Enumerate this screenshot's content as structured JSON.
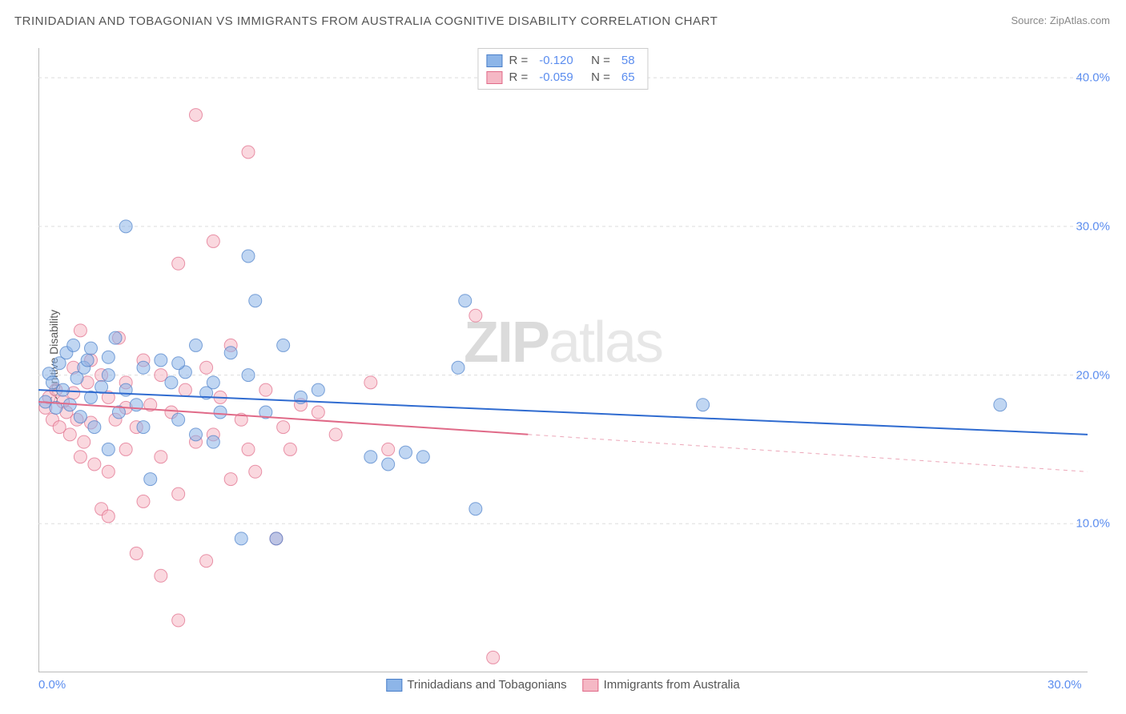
{
  "title": "TRINIDADIAN AND TOBAGONIAN VS IMMIGRANTS FROM AUSTRALIA COGNITIVE DISABILITY CORRELATION CHART",
  "source": "Source: ZipAtlas.com",
  "ylabel": "Cognitive Disability",
  "watermark_a": "ZIP",
  "watermark_b": "atlas",
  "chart": {
    "type": "scatter",
    "background_color": "#ffffff",
    "grid_color": "#dddddd",
    "axis_color": "#bbbbbb",
    "tick_color": "#5b8def",
    "tick_fontsize": 15,
    "label_fontsize": 14,
    "label_color": "#555555",
    "xlim": [
      0,
      30
    ],
    "ylim": [
      0,
      42
    ],
    "xticks": [
      {
        "v": 0,
        "label": "0.0%"
      },
      {
        "v": 30,
        "label": "30.0%"
      }
    ],
    "yticks": [
      {
        "v": 10,
        "label": "10.0%"
      },
      {
        "v": 20,
        "label": "20.0%"
      },
      {
        "v": 30,
        "label": "30.0%"
      },
      {
        "v": 40,
        "label": "40.0%"
      }
    ],
    "marker_radius": 8,
    "marker_opacity": 0.55,
    "series": [
      {
        "name": "Trinidadians and Tobagonians",
        "color": "#8db5e8",
        "stroke": "#4a7fc9",
        "R": "-0.120",
        "N": "58",
        "trend": {
          "x1": 0,
          "y1": 19.0,
          "x2": 30,
          "y2": 16.0,
          "solid_until": 30,
          "stroke": "#2f6bd0",
          "width": 2
        },
        "points": [
          [
            0.2,
            18.2
          ],
          [
            0.3,
            20.1
          ],
          [
            0.4,
            19.5
          ],
          [
            0.5,
            17.8
          ],
          [
            0.6,
            20.8
          ],
          [
            0.7,
            19.0
          ],
          [
            0.8,
            21.5
          ],
          [
            0.9,
            18.0
          ],
          [
            1.0,
            22.0
          ],
          [
            1.1,
            19.8
          ],
          [
            1.2,
            17.2
          ],
          [
            1.3,
            20.5
          ],
          [
            1.4,
            21.0
          ],
          [
            1.5,
            18.5
          ],
          [
            1.6,
            16.5
          ],
          [
            1.8,
            19.2
          ],
          [
            2.0,
            20.0
          ],
          [
            2.0,
            15.0
          ],
          [
            2.2,
            22.5
          ],
          [
            2.3,
            17.5
          ],
          [
            2.5,
            30.0
          ],
          [
            2.5,
            19.0
          ],
          [
            2.8,
            18.0
          ],
          [
            3.0,
            20.5
          ],
          [
            3.2,
            13.0
          ],
          [
            3.5,
            21.0
          ],
          [
            3.8,
            19.5
          ],
          [
            4.0,
            17.0
          ],
          [
            4.2,
            20.2
          ],
          [
            4.5,
            16.0
          ],
          [
            4.5,
            22.0
          ],
          [
            4.8,
            18.8
          ],
          [
            5.0,
            19.5
          ],
          [
            5.2,
            17.5
          ],
          [
            5.5,
            21.5
          ],
          [
            5.8,
            9.0
          ],
          [
            6.0,
            20.0
          ],
          [
            6.0,
            28.0
          ],
          [
            6.2,
            25.0
          ],
          [
            6.5,
            17.5
          ],
          [
            6.8,
            9.0
          ],
          [
            7.0,
            22.0
          ],
          [
            7.5,
            18.5
          ],
          [
            8.0,
            19.0
          ],
          [
            9.5,
            14.5
          ],
          [
            10.0,
            14.0
          ],
          [
            10.5,
            14.8
          ],
          [
            11.0,
            14.5
          ],
          [
            12.0,
            20.5
          ],
          [
            12.2,
            25.0
          ],
          [
            12.5,
            11.0
          ],
          [
            19.0,
            18.0
          ],
          [
            27.5,
            18.0
          ],
          [
            2.0,
            21.2
          ],
          [
            3.0,
            16.5
          ],
          [
            4.0,
            20.8
          ],
          [
            5.0,
            15.5
          ],
          [
            1.5,
            21.8
          ]
        ]
      },
      {
        "name": "Immigrants from Australia",
        "color": "#f5b8c5",
        "stroke": "#e06a88",
        "R": "-0.059",
        "N": "65",
        "trend": {
          "x1": 0,
          "y1": 18.2,
          "x2": 30,
          "y2": 13.5,
          "solid_until": 14,
          "stroke": "#e06a88",
          "width": 2
        },
        "points": [
          [
            0.2,
            17.8
          ],
          [
            0.3,
            18.5
          ],
          [
            0.4,
            17.0
          ],
          [
            0.5,
            19.0
          ],
          [
            0.6,
            16.5
          ],
          [
            0.7,
            18.2
          ],
          [
            0.8,
            17.5
          ],
          [
            0.9,
            16.0
          ],
          [
            1.0,
            18.8
          ],
          [
            1.0,
            20.5
          ],
          [
            1.1,
            17.0
          ],
          [
            1.2,
            23.0
          ],
          [
            1.3,
            15.5
          ],
          [
            1.4,
            19.5
          ],
          [
            1.5,
            16.8
          ],
          [
            1.5,
            21.0
          ],
          [
            1.6,
            14.0
          ],
          [
            1.8,
            20.0
          ],
          [
            1.8,
            11.0
          ],
          [
            2.0,
            18.5
          ],
          [
            2.0,
            13.5
          ],
          [
            2.2,
            17.0
          ],
          [
            2.3,
            22.5
          ],
          [
            2.5,
            15.0
          ],
          [
            2.5,
            19.5
          ],
          [
            2.8,
            8.0
          ],
          [
            2.8,
            16.5
          ],
          [
            3.0,
            11.5
          ],
          [
            3.0,
            21.0
          ],
          [
            3.2,
            18.0
          ],
          [
            3.5,
            14.5
          ],
          [
            3.5,
            6.5
          ],
          [
            3.8,
            17.5
          ],
          [
            4.0,
            27.5
          ],
          [
            4.0,
            12.0
          ],
          [
            4.2,
            19.0
          ],
          [
            4.5,
            37.5
          ],
          [
            4.5,
            15.5
          ],
          [
            4.8,
            20.5
          ],
          [
            5.0,
            16.0
          ],
          [
            5.0,
            29.0
          ],
          [
            5.2,
            18.5
          ],
          [
            5.5,
            13.0
          ],
          [
            5.5,
            22.0
          ],
          [
            5.8,
            17.0
          ],
          [
            6.0,
            15.0
          ],
          [
            6.0,
            35.0
          ],
          [
            6.5,
            19.0
          ],
          [
            6.8,
            9.0
          ],
          [
            7.0,
            16.5
          ],
          [
            7.2,
            15.0
          ],
          [
            7.5,
            18.0
          ],
          [
            8.0,
            17.5
          ],
          [
            8.5,
            16.0
          ],
          [
            9.5,
            19.5
          ],
          [
            10.0,
            15.0
          ],
          [
            12.5,
            24.0
          ],
          [
            13.0,
            1.0
          ],
          [
            4.0,
            3.5
          ],
          [
            2.0,
            10.5
          ],
          [
            3.5,
            20.0
          ],
          [
            1.2,
            14.5
          ],
          [
            4.8,
            7.5
          ],
          [
            2.5,
            17.8
          ],
          [
            6.2,
            13.5
          ]
        ]
      }
    ]
  }
}
